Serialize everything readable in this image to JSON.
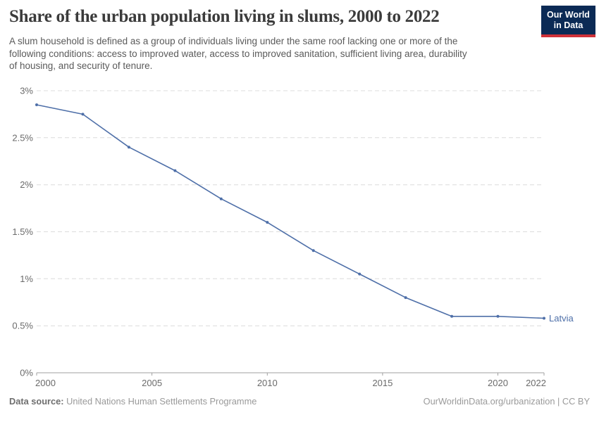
{
  "header": {
    "title": "Share of the urban population living in slums, 2000 to 2022",
    "subtitle_lines": [
      "A slum household is defined as a group of individuals living under the same roof lacking one or more of the",
      "following conditions: access to improved water, access to improved sanitation, sufficient living area, durability",
      "of housing, and security of tenure."
    ],
    "logo": {
      "line1": "Our World",
      "line2": "in Data"
    }
  },
  "chart_data": {
    "type": "line",
    "title": "Share of the urban population living in slums, 2000 to 2022",
    "x": [
      2000,
      2002,
      2004,
      2006,
      2008,
      2010,
      2012,
      2014,
      2016,
      2018,
      2020,
      2022
    ],
    "series": [
      {
        "name": "Latvia",
        "values": [
          2.85,
          2.75,
          2.4,
          2.15,
          1.85,
          1.6,
          1.3,
          1.05,
          0.8,
          0.6,
          0.6,
          0.58
        ],
        "color": "#4e6fa8"
      }
    ],
    "unit": "%",
    "ylim": [
      0,
      3
    ],
    "yticks": {
      "values": [
        0,
        0.5,
        1,
        1.5,
        2,
        2.5,
        3
      ],
      "labels": [
        "0%",
        "0.5%",
        "1%",
        "1.5%",
        "2%",
        "2.5%",
        "3%"
      ]
    },
    "xticks": [
      2000,
      2005,
      2010,
      2015,
      2020,
      2022
    ],
    "grid": "horizontal-dashed",
    "legend_position": "end-of-line-label"
  },
  "footer": {
    "source_label": "Data source:",
    "source": "United Nations Human Settlements Programme",
    "credit": "OurWorldinData.org/urbanization | CC BY"
  },
  "colors": {
    "line": "#4e6fa8",
    "grid": "#dcdcdc",
    "axis": "#a0a0a0",
    "tick_label": "#6b6b6b",
    "logo_bg": "#0b2a55",
    "logo_accent": "#cf3138"
  }
}
